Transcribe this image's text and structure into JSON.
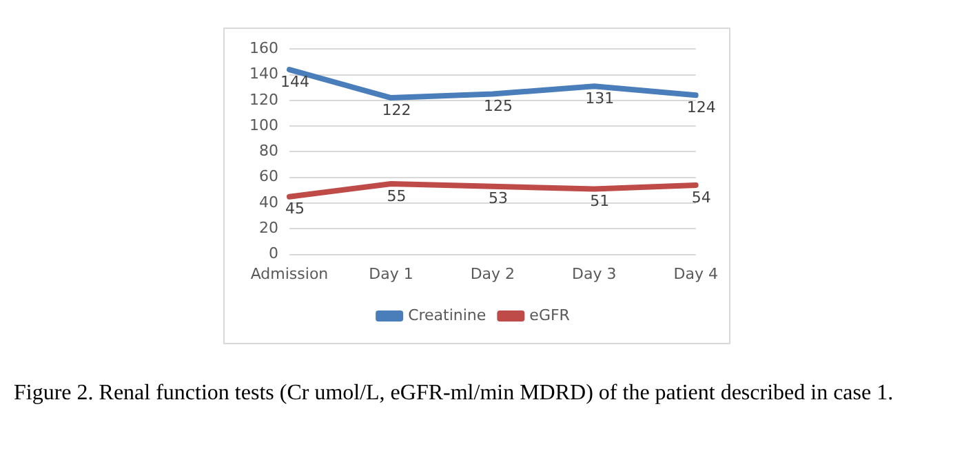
{
  "chart_data": {
    "type": "line",
    "categories": [
      "Admission",
      "Day 1",
      "Day 2",
      "Day 3",
      "Day 4"
    ],
    "series": [
      {
        "name": "Creatinine",
        "color": "#4a7ebb",
        "values": [
          144,
          122,
          125,
          131,
          124
        ]
      },
      {
        "name": "eGFR",
        "color": "#be4b48",
        "values": [
          45,
          55,
          53,
          51,
          54
        ]
      }
    ],
    "ylim": [
      0,
      160
    ],
    "yticks": [
      0,
      20,
      40,
      60,
      80,
      100,
      120,
      140,
      160
    ],
    "grid": "y",
    "legend": "bottom",
    "data_labels": true,
    "marker": "none",
    "line_style": "solid",
    "annotations": [
      "Figure 2. Renal function tests (Cr umol/L, eGFR-ml/min MDRD) of the patient described in case 1."
    ]
  }
}
